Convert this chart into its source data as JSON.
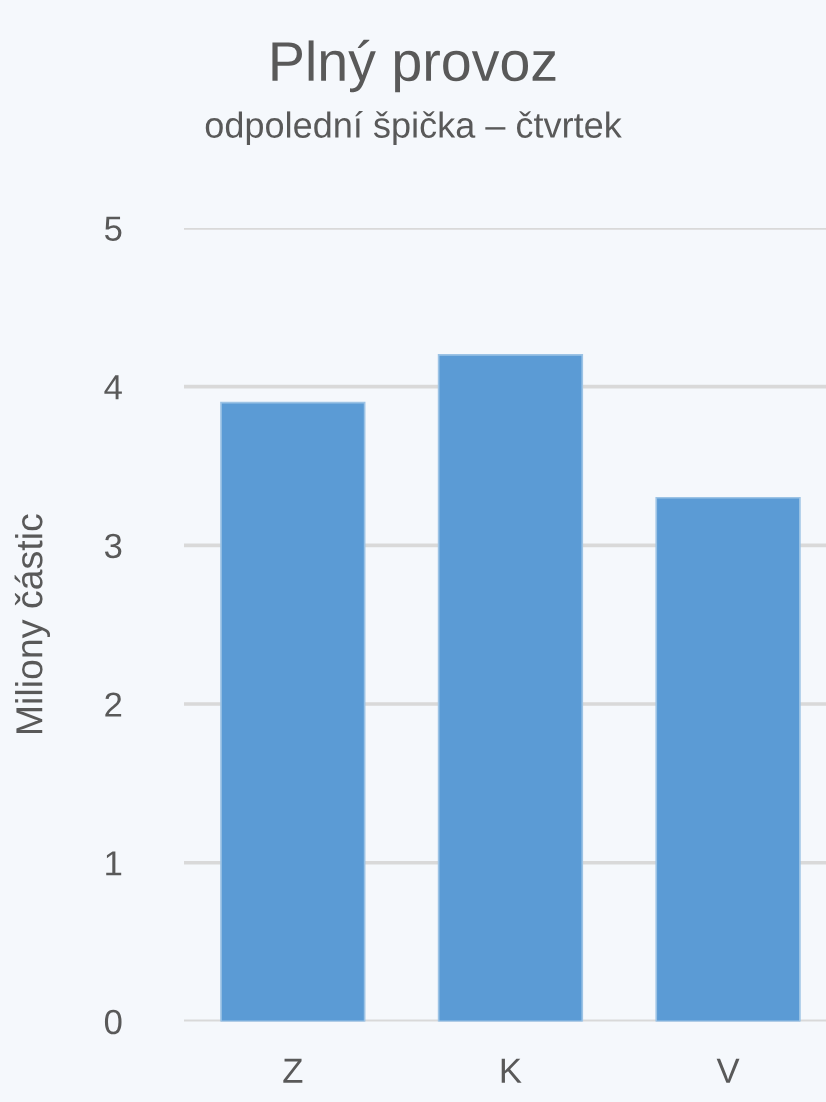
{
  "chart_data": {
    "type": "bar",
    "title": "Plný provoz",
    "subtitle": "odpolední špička – čtvrtek",
    "ylabel": "Miliony částic",
    "categories": [
      "Z",
      "K",
      "V"
    ],
    "values": [
      3.9,
      4.2,
      3.3
    ],
    "color": "#5b9bd5",
    "ylim": [
      0,
      5
    ],
    "yticks": [
      0,
      1,
      2,
      3,
      4,
      5
    ],
    "grid": "y"
  }
}
